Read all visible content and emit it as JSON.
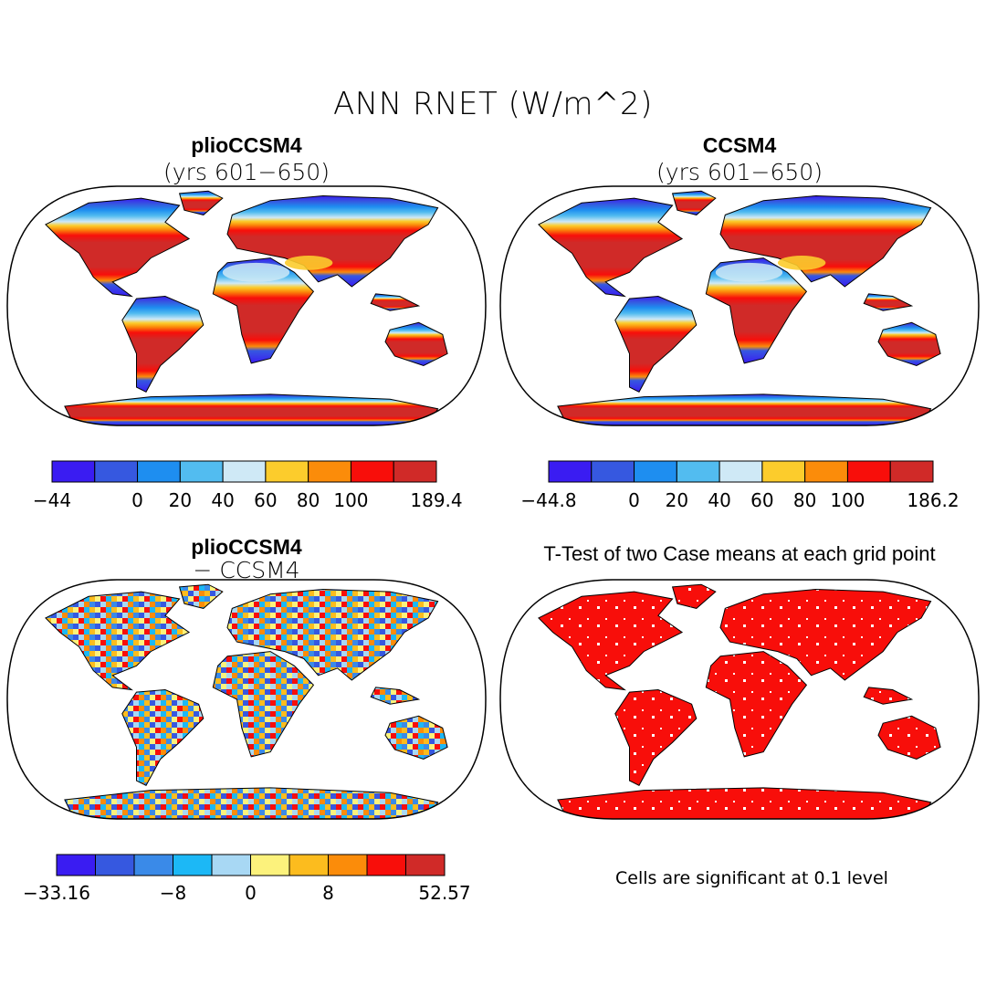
{
  "figure": {
    "title": "ANN RNET (W/m^2)",
    "panels": [
      {
        "id": "p1",
        "title": "plioCCSM4",
        "subtitle": "(yrs 601−650)"
      },
      {
        "id": "p2",
        "title": "CCSM4",
        "subtitle": "(yrs 601−650)"
      },
      {
        "id": "p3",
        "title": "plioCCSM4",
        "subtitle": "− CCSM4"
      },
      {
        "id": "p4",
        "title": "T-Test of two Case means at each grid point",
        "subtitle": ""
      }
    ],
    "colorbars": [
      {
        "id": "cb1",
        "colors": [
          "#3a1cf2",
          "#3658e0",
          "#1e8ef0",
          "#52bcf0",
          "#cfe9f6",
          "#fccc2c",
          "#fb8c0a",
          "#f80e0a",
          "#d02a28"
        ],
        "labels": [
          "−44",
          "0",
          "20",
          "40",
          "60",
          "80",
          "100",
          "189.4"
        ]
      },
      {
        "id": "cb2",
        "colors": [
          "#3a1cf2",
          "#3658e0",
          "#1e8ef0",
          "#52bcf0",
          "#cfe9f6",
          "#fccc2c",
          "#fb8c0a",
          "#f80e0a",
          "#d02a28"
        ],
        "labels": [
          "−44.8",
          "0",
          "20",
          "40",
          "60",
          "80",
          "100",
          "186.2"
        ]
      },
      {
        "id": "cb3",
        "colors": [
          "#3a1cf2",
          "#3658e0",
          "#3a8ae8",
          "#1cb8f6",
          "#a8d8f4",
          "#fcf27c",
          "#fcbc1e",
          "#fb8c0a",
          "#f80e0a",
          "#d02a28"
        ],
        "labels": [
          "−33.16",
          "−8",
          "0",
          "8",
          "52.57"
        ]
      }
    ],
    "note": "Cells are significant at 0.1 level"
  }
}
